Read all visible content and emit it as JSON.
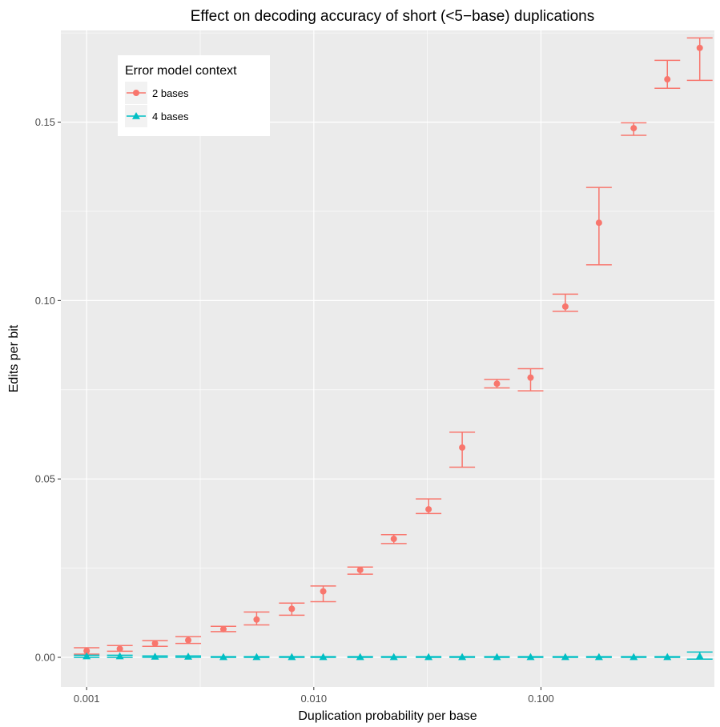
{
  "chart_data": {
    "type": "scatter",
    "title": "Effect on decoding accuracy of short (<5−base) duplications",
    "xlabel": "Duplication probability per base",
    "ylabel": "Edits per bit",
    "x_scale": "log10",
    "xlim": [
      0.00077,
      0.58
    ],
    "ylim": [
      -0.0083,
      0.1757
    ],
    "x_ticks": [
      0.001,
      0.01,
      0.1
    ],
    "x_tick_labels": [
      "0.001",
      "0.010",
      "0.100"
    ],
    "y_ticks": [
      0.0,
      0.05,
      0.1,
      0.15
    ],
    "y_tick_labels": [
      "0.00",
      "0.05",
      "0.10",
      "0.15"
    ],
    "grid": true,
    "legend": {
      "title": "Error model context",
      "position": "top-left",
      "entries": [
        "2 bases",
        "4 bases"
      ]
    },
    "x": [
      0.001,
      0.0014,
      0.002,
      0.0028,
      0.004,
      0.0056,
      0.008,
      0.011,
      0.016,
      0.0225,
      0.032,
      0.045,
      0.064,
      0.09,
      0.128,
      0.18,
      0.256,
      0.36,
      0.5
    ],
    "series": [
      {
        "name": "2 bases",
        "color": "#f8766d",
        "marker": "circle",
        "y": [
          0.0018,
          0.0024,
          0.0039,
          0.0048,
          0.0079,
          0.0106,
          0.0136,
          0.0185,
          0.0245,
          0.0332,
          0.0415,
          0.0588,
          0.0767,
          0.0784,
          0.0983,
          0.1218,
          0.1483,
          0.162,
          0.1708
        ],
        "y_low": [
          0.0009,
          0.0017,
          0.0031,
          0.0039,
          0.0072,
          0.0091,
          0.0118,
          0.0156,
          0.0233,
          0.0319,
          0.0403,
          0.0533,
          0.0755,
          0.0747,
          0.097,
          0.11,
          0.1463,
          0.1595,
          0.1617
        ],
        "y_high": [
          0.0027,
          0.0033,
          0.0047,
          0.0058,
          0.0087,
          0.0127,
          0.0152,
          0.02,
          0.0253,
          0.0344,
          0.0444,
          0.0631,
          0.0779,
          0.0809,
          0.1018,
          0.1317,
          0.1498,
          0.1673,
          0.1736
        ]
      },
      {
        "name": "4 bases",
        "color": "#00bfc4",
        "marker": "triangle",
        "y": [
          0.0003,
          0.0003,
          0.0002,
          0.0002,
          0.0001,
          0.0001,
          0.0001,
          0.0001,
          0.0001,
          0.0001,
          0.0001,
          0.0001,
          0.0001,
          0.0001,
          0.0001,
          0.0001,
          0.0001,
          0.0001,
          0.0003
        ],
        "y_low": [
          0.0,
          0.0,
          0.0,
          0.0,
          0.0,
          0.0,
          0.0,
          0.0,
          0.0,
          0.0,
          0.0,
          0.0,
          0.0,
          0.0,
          0.0,
          0.0,
          0.0,
          0.0,
          -0.0005
        ],
        "y_high": [
          0.0006,
          0.0006,
          0.0004,
          0.0004,
          0.0002,
          0.0002,
          0.0002,
          0.0002,
          0.0002,
          0.0002,
          0.0002,
          0.0002,
          0.0002,
          0.0002,
          0.0002,
          0.0002,
          0.0002,
          0.0002,
          0.0015
        ]
      }
    ]
  }
}
